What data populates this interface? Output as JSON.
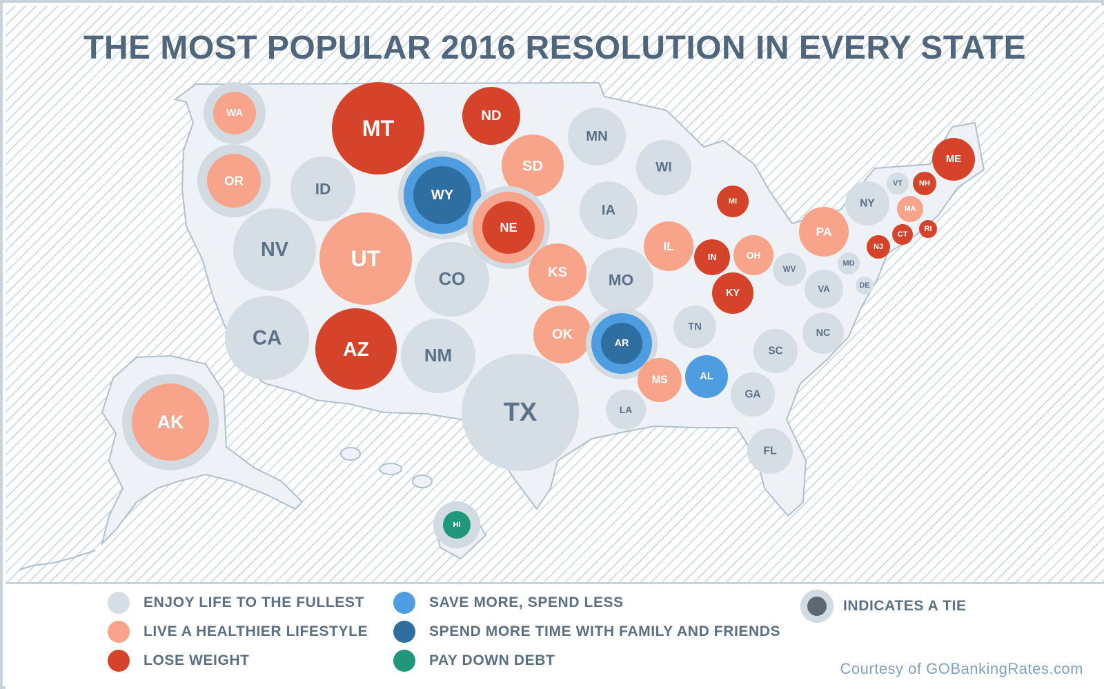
{
  "title": "THE MOST POPULAR 2016 RESOLUTION IN EVERY STATE",
  "colors": {
    "background": "#ffffff",
    "stripe": "#d3dde6",
    "land": "#eef2f6",
    "land_outline": "#aebfcd",
    "tie_ring": "#d2dae2",
    "label_dark": "#5b7188",
    "label_light": "#ffffff",
    "enjoy_life": "#d5dde5",
    "healthier": "#f7a48a",
    "lose_weight": "#d5442a",
    "save_more": "#4d9de0",
    "family": "#2f6ea0",
    "debt": "#20967b"
  },
  "legend": {
    "categories": [
      {
        "key": "enjoy_life",
        "label": "ENJOY LIFE TO THE FULLEST"
      },
      {
        "key": "healthier",
        "label": "LIVE A HEALTHIER LIFESTYLE"
      },
      {
        "key": "lose_weight",
        "label": "LOSE WEIGHT"
      },
      {
        "key": "save_more",
        "label": "SAVE MORE, SPEND LESS"
      },
      {
        "key": "family",
        "label": "SPEND MORE TIME WITH FAMILY AND FRIENDS"
      },
      {
        "key": "debt",
        "label": "PAY DOWN DEBT"
      }
    ],
    "tie_label": "INDICATES A TIE"
  },
  "credit": "Courtesy of GOBankingRates.com",
  "states": [
    {
      "abbr": "WA",
      "category": "healthier",
      "tie": true
    },
    {
      "abbr": "OR",
      "category": "healthier",
      "tie": true
    },
    {
      "abbr": "CA",
      "category": "enjoy_life"
    },
    {
      "abbr": "NV",
      "category": "enjoy_life"
    },
    {
      "abbr": "ID",
      "category": "enjoy_life"
    },
    {
      "abbr": "MT",
      "category": "lose_weight"
    },
    {
      "abbr": "WY",
      "category": "family",
      "tie": true,
      "tie_category": "save_more"
    },
    {
      "abbr": "UT",
      "category": "healthier"
    },
    {
      "abbr": "AZ",
      "category": "lose_weight"
    },
    {
      "abbr": "CO",
      "category": "enjoy_life"
    },
    {
      "abbr": "NM",
      "category": "enjoy_life"
    },
    {
      "abbr": "ND",
      "category": "lose_weight"
    },
    {
      "abbr": "SD",
      "category": "healthier"
    },
    {
      "abbr": "NE",
      "category": "lose_weight",
      "tie": true,
      "tie_category": "healthier"
    },
    {
      "abbr": "KS",
      "category": "healthier"
    },
    {
      "abbr": "OK",
      "category": "healthier"
    },
    {
      "abbr": "TX",
      "category": "enjoy_life"
    },
    {
      "abbr": "MN",
      "category": "enjoy_life"
    },
    {
      "abbr": "IA",
      "category": "enjoy_life"
    },
    {
      "abbr": "MO",
      "category": "enjoy_life"
    },
    {
      "abbr": "AR",
      "category": "family",
      "tie": true,
      "tie_category": "save_more"
    },
    {
      "abbr": "LA",
      "category": "enjoy_life"
    },
    {
      "abbr": "WI",
      "category": "enjoy_life"
    },
    {
      "abbr": "IL",
      "category": "healthier"
    },
    {
      "abbr": "MI",
      "category": "lose_weight"
    },
    {
      "abbr": "IN",
      "category": "lose_weight"
    },
    {
      "abbr": "OH",
      "category": "healthier"
    },
    {
      "abbr": "KY",
      "category": "lose_weight"
    },
    {
      "abbr": "TN",
      "category": "enjoy_life"
    },
    {
      "abbr": "MS",
      "category": "healthier"
    },
    {
      "abbr": "AL",
      "category": "save_more"
    },
    {
      "abbr": "GA",
      "category": "enjoy_life"
    },
    {
      "abbr": "FL",
      "category": "enjoy_life"
    },
    {
      "abbr": "SC",
      "category": "enjoy_life"
    },
    {
      "abbr": "NC",
      "category": "enjoy_life"
    },
    {
      "abbr": "VA",
      "category": "enjoy_life"
    },
    {
      "abbr": "WV",
      "category": "enjoy_life"
    },
    {
      "abbr": "PA",
      "category": "healthier"
    },
    {
      "abbr": "NY",
      "category": "enjoy_life"
    },
    {
      "abbr": "VT",
      "category": "enjoy_life"
    },
    {
      "abbr": "NH",
      "category": "lose_weight"
    },
    {
      "abbr": "ME",
      "category": "lose_weight"
    },
    {
      "abbr": "MA",
      "category": "healthier"
    },
    {
      "abbr": "RI",
      "category": "lose_weight"
    },
    {
      "abbr": "CT",
      "category": "lose_weight"
    },
    {
      "abbr": "NJ",
      "category": "lose_weight"
    },
    {
      "abbr": "DE",
      "category": "enjoy_life"
    },
    {
      "abbr": "MD",
      "category": "enjoy_life"
    },
    {
      "abbr": "AK",
      "category": "healthier",
      "tie": true
    },
    {
      "abbr": "HI",
      "category": "debt",
      "tie": true
    }
  ]
}
